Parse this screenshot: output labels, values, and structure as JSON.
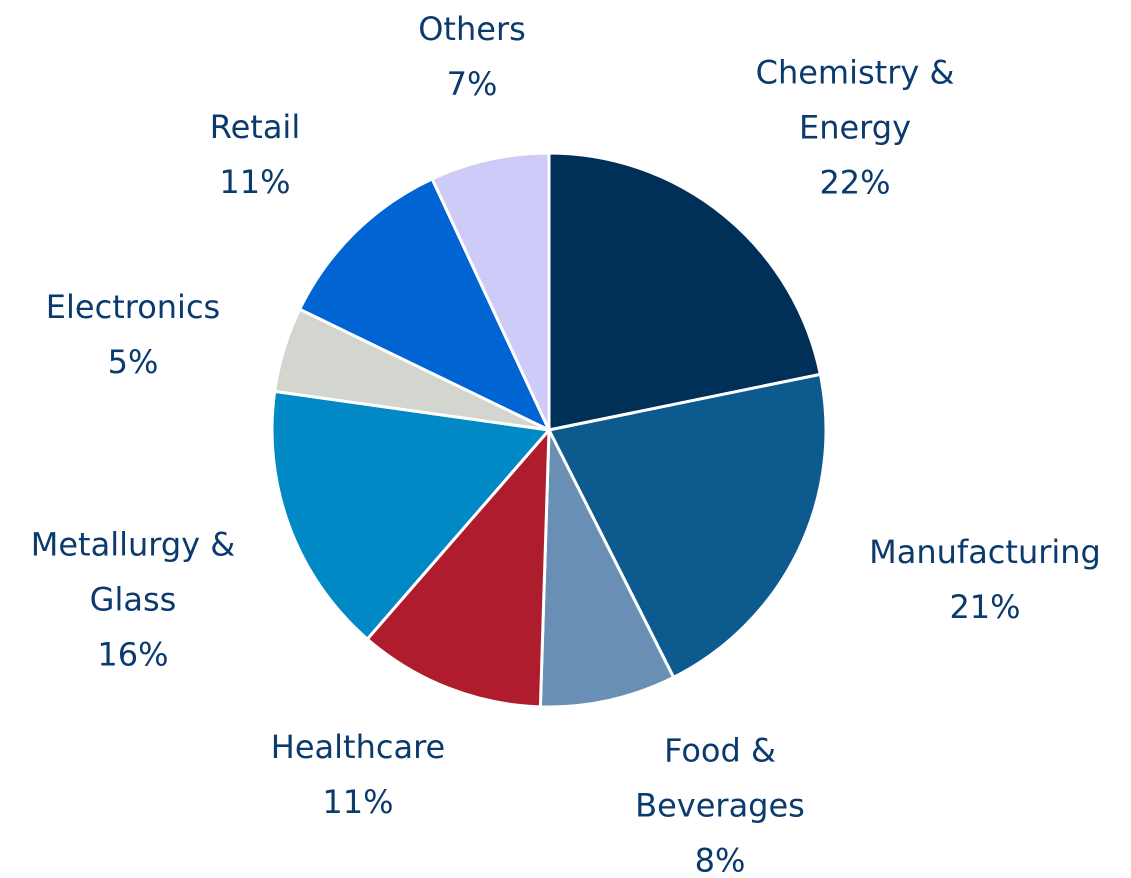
{
  "chart_data": {
    "type": "pie",
    "categories": [
      "Chemistry &\nEnergy",
      "Manufacturing",
      "Food &\nBeverages",
      "Healthcare",
      "Metallurgy &\nGlass",
      "Electronics",
      "Retail",
      "Others"
    ],
    "values": [
      22,
      21,
      8,
      11,
      16,
      5,
      11,
      7
    ],
    "value_labels": [
      "22%",
      "21%",
      "8%",
      "11%",
      "16%",
      "5%",
      "11%",
      "7%"
    ],
    "colors": [
      "#003057",
      "#0d5a8f",
      "#6a8fb5",
      "#ae1c2e",
      "#0089c4",
      "#d3d6ce",
      "#0064d2",
      "#cdccf8"
    ]
  }
}
